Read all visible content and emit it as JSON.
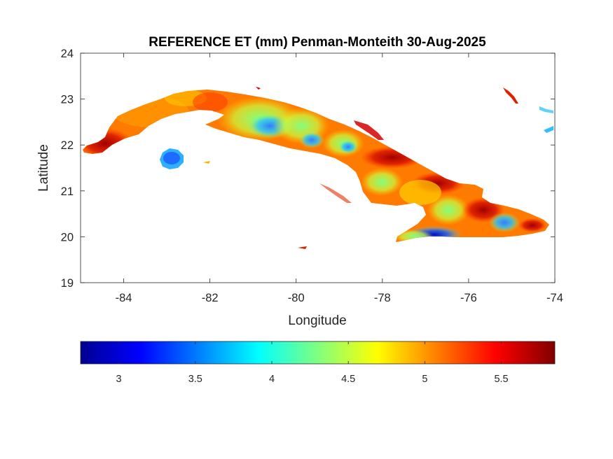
{
  "figure": {
    "title": "REFERENCE ET (mm) Penman-Monteith 30-Aug-2025",
    "xlabel": "Longitude",
    "ylabel": "Latitude"
  },
  "map": {
    "xlim": [
      -85,
      -74
    ],
    "ylim": [
      19,
      24
    ],
    "xticks": [
      {
        "value": -84,
        "label": "-84"
      },
      {
        "value": -82,
        "label": "-82"
      },
      {
        "value": -80,
        "label": "-80"
      },
      {
        "value": -78,
        "label": "-78"
      },
      {
        "value": -76,
        "label": "-76"
      },
      {
        "value": -74,
        "label": "-74"
      }
    ],
    "yticks": [
      {
        "value": 19,
        "label": "19"
      },
      {
        "value": 20,
        "label": "20"
      },
      {
        "value": 21,
        "label": "21"
      },
      {
        "value": 22,
        "label": "22"
      },
      {
        "value": 23,
        "label": "23"
      },
      {
        "value": 24,
        "label": "24"
      }
    ],
    "grid": false
  },
  "colorbar": {
    "colormap": "jet",
    "range": [
      2.75,
      5.85
    ],
    "ticks": [
      {
        "value": 3,
        "label": "3"
      },
      {
        "value": 3.5,
        "label": "3.5"
      },
      {
        "value": 4,
        "label": "4"
      },
      {
        "value": 4.5,
        "label": "4.5"
      },
      {
        "value": 5,
        "label": "5"
      },
      {
        "value": 5.5,
        "label": "5.5"
      }
    ],
    "placement": "below"
  },
  "colors": {
    "low": "#00008f",
    "mid_low": "#00ffff",
    "mid": "#ffff00",
    "high": "#ff0000",
    "max": "#800000"
  }
}
